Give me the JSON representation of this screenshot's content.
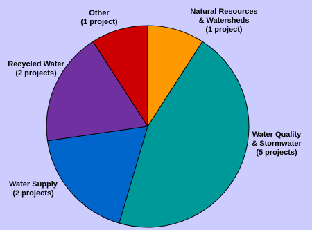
{
  "chart_data": {
    "type": "pie",
    "background": "#CCCCFF",
    "slices": [
      {
        "label_lines": [
          "Natural Resources",
          "& Watersheds",
          "(1 project)"
        ],
        "value": 1,
        "color": "#FF9900"
      },
      {
        "label_lines": [
          "Water Quality",
          "& Stormwater",
          "(5 projects)"
        ],
        "value": 5,
        "color": "#009999"
      },
      {
        "label_lines": [
          "Water Supply",
          "(2 projects)"
        ],
        "value": 2,
        "color": "#0066CC"
      },
      {
        "label_lines": [
          "Recycled Water",
          "(2 projects)"
        ],
        "value": 2,
        "color": "#7030A0"
      },
      {
        "label_lines": [
          "Other",
          "(1 project)"
        ],
        "value": 1,
        "color": "#CC0000"
      }
    ]
  }
}
